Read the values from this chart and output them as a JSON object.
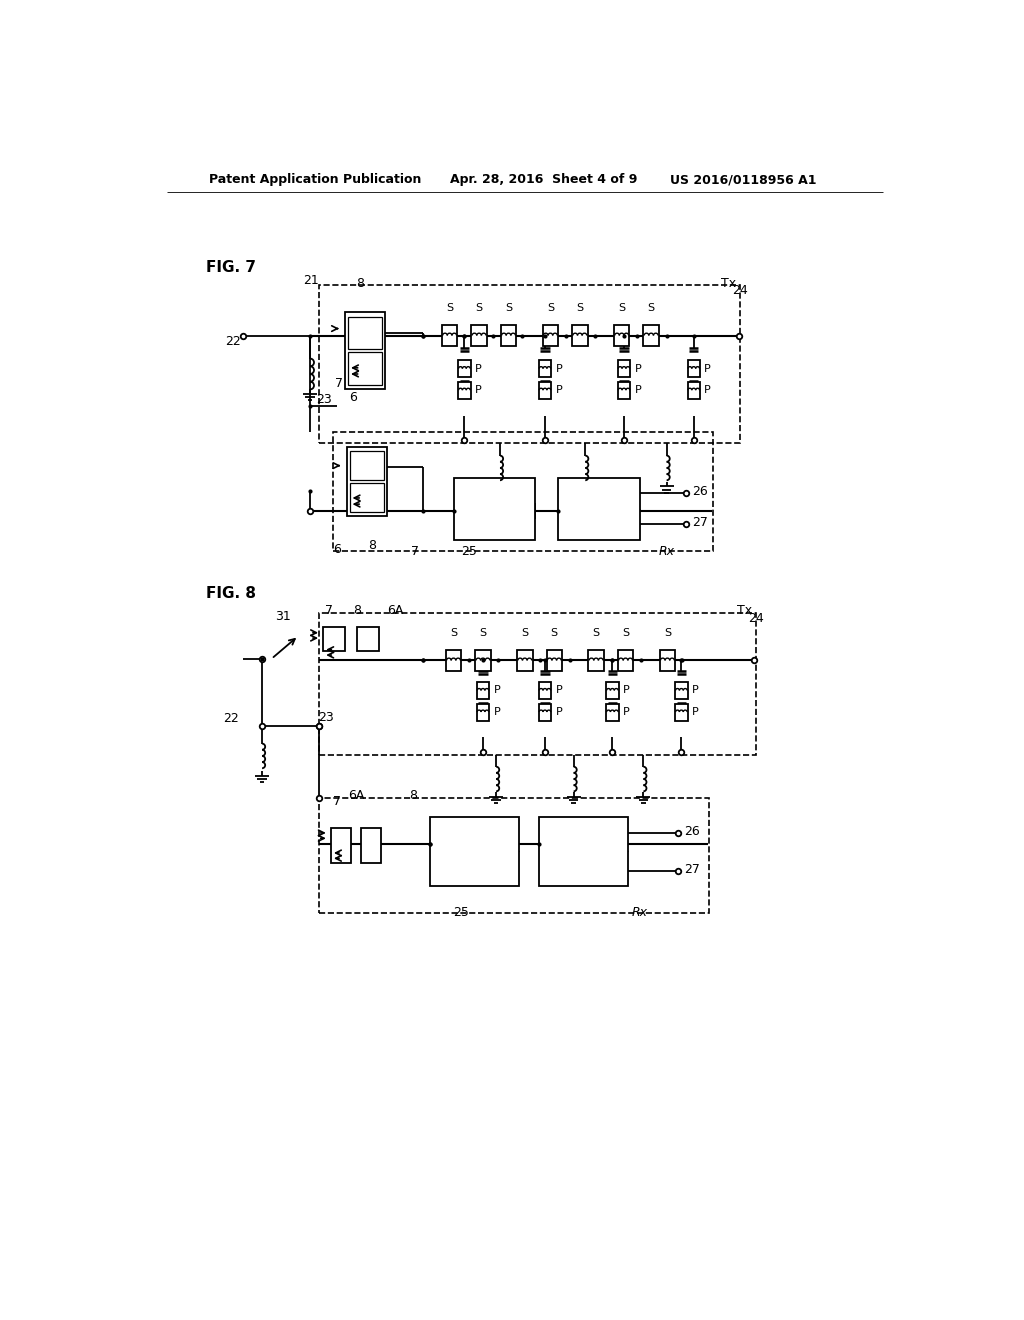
{
  "title_left": "Patent Application Publication",
  "title_center": "Apr. 28, 2016  Sheet 4 of 9",
  "title_right": "US 2016/0118956 A1",
  "background": "#ffffff"
}
